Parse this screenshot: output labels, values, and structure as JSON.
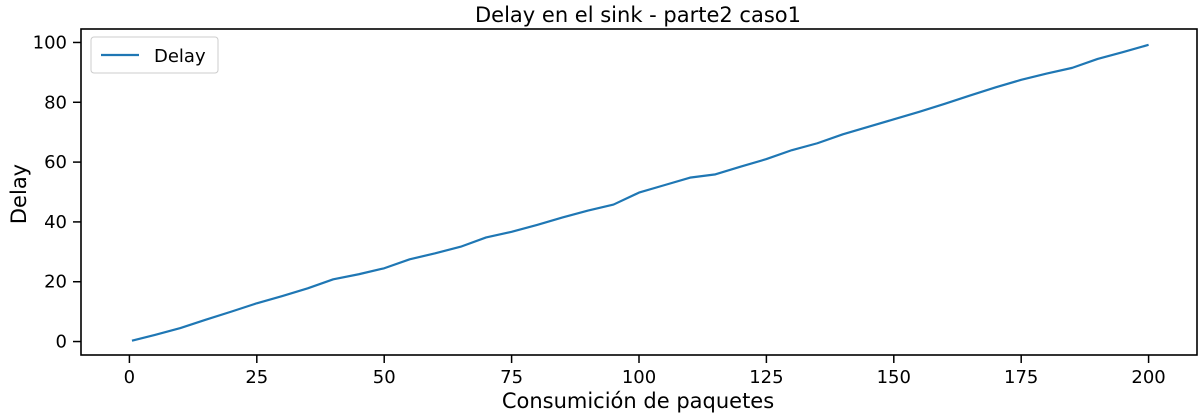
{
  "chart_data": {
    "type": "line",
    "title": "Delay en el sink - parte2 caso1",
    "xlabel": "Consumición de paquetes",
    "ylabel": "Delay",
    "xlim": [
      -9.5,
      209.5
    ],
    "ylim": [
      -4.5,
      104.5
    ],
    "xticks": [
      0,
      25,
      50,
      75,
      100,
      125,
      150,
      175,
      200
    ],
    "yticks": [
      0,
      20,
      40,
      60,
      80,
      100
    ],
    "grid": false,
    "legend_position": "top-left",
    "series": [
      {
        "name": "Delay",
        "color": "#1f77b4",
        "x": [
          0.5,
          5,
          10,
          15,
          20,
          25,
          30,
          35,
          40,
          45,
          50,
          55,
          60,
          65,
          70,
          75,
          80,
          85,
          90,
          95,
          100,
          105,
          110,
          115,
          120,
          125,
          130,
          135,
          140,
          145,
          150,
          155,
          160,
          165,
          170,
          175,
          180,
          185,
          190,
          195,
          200
        ],
        "y": [
          0.3,
          2.2,
          4.5,
          7.3,
          10.0,
          12.8,
          15.2,
          17.8,
          20.8,
          22.5,
          24.5,
          27.5,
          29.5,
          31.7,
          34.8,
          36.7,
          39.0,
          41.5,
          43.8,
          45.8,
          49.8,
          52.3,
          54.8,
          55.9,
          58.5,
          61.0,
          64.0,
          66.3,
          69.3,
          71.8,
          74.3,
          76.8,
          79.5,
          82.3,
          85.0,
          87.5,
          89.6,
          91.5,
          94.5,
          96.8,
          99.2
        ]
      }
    ]
  }
}
